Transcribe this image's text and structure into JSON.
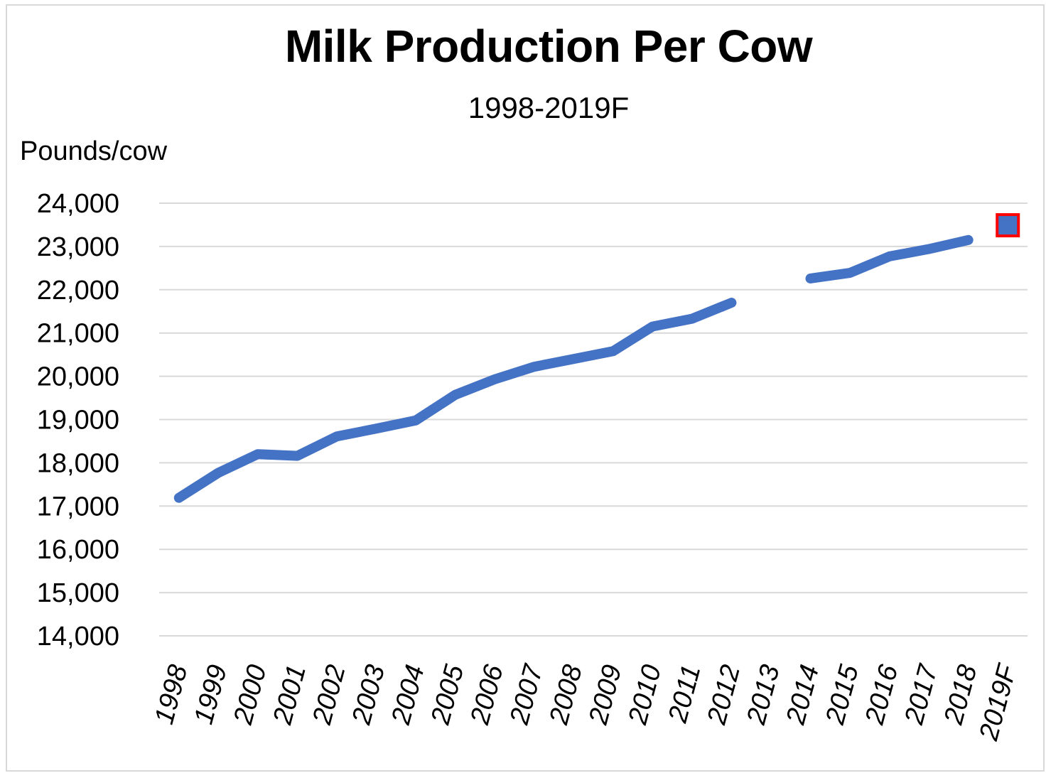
{
  "chart_data": {
    "type": "line",
    "title": "Milk Production Per Cow",
    "subtitle": "1998-2019F",
    "ylabel": "Pounds/cow",
    "xlabel": "",
    "ylim": [
      14000,
      24000
    ],
    "y_ticks": [
      "14,000",
      "15,000",
      "16,000",
      "17,000",
      "18,000",
      "19,000",
      "20,000",
      "21,000",
      "22,000",
      "23,000",
      "24,000"
    ],
    "y_tick_values": [
      14000,
      15000,
      16000,
      17000,
      18000,
      19000,
      20000,
      21000,
      22000,
      23000,
      24000
    ],
    "grid": true,
    "categories": [
      "1998",
      "1999",
      "2000",
      "2001",
      "2002",
      "2003",
      "2004",
      "2005",
      "2006",
      "2007",
      "2008",
      "2009",
      "2010",
      "2011",
      "2012",
      "2013",
      "2014",
      "2015",
      "2016",
      "2017",
      "2018",
      "2019F"
    ],
    "series": [
      {
        "values": [
          17190,
          17770,
          18200,
          18160,
          18610,
          18790,
          18980,
          19570,
          19930,
          20220,
          20400,
          20580,
          21150,
          21330,
          21700,
          null,
          22260,
          22390,
          22770,
          22940,
          23150,
          null
        ],
        "color": "#4472c4"
      },
      {
        "values": [
          null,
          null,
          null,
          null,
          null,
          null,
          null,
          null,
          null,
          null,
          null,
          null,
          null,
          null,
          null,
          null,
          null,
          null,
          null,
          null,
          null,
          23490
        ],
        "color": "#4472c4",
        "marker": "square",
        "marker_border": "#ff0000"
      }
    ]
  }
}
